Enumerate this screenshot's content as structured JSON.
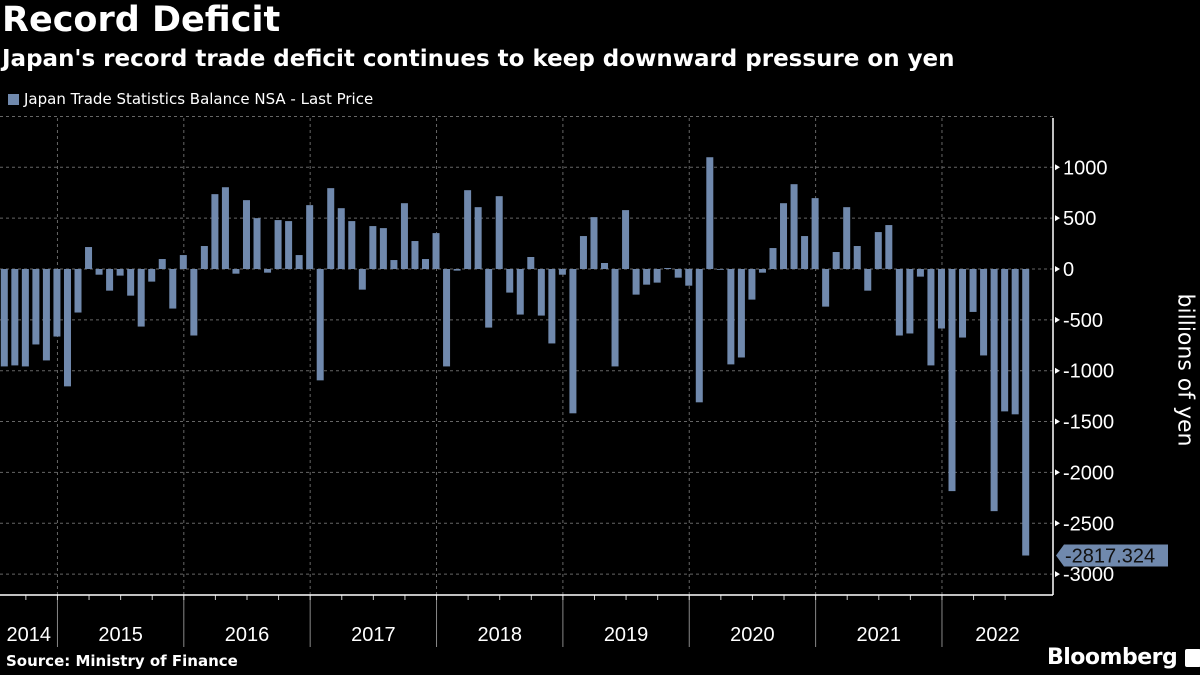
{
  "title": "Record Deficit",
  "subtitle": "Japan's record trade deficit continues to keep downward pressure on yen",
  "source": "Source: Ministry of Finance",
  "brand": "Bloomberg",
  "chart_data": {
    "type": "bar",
    "title": "Record Deficit",
    "subtitle": "Japan's record trade deficit continues to keep downward pressure on yen",
    "legend": [
      "Japan Trade Statistics Balance NSA - Last Price"
    ],
    "legend_placement": "top-left",
    "ylabel": "billions of yen",
    "ylim": [
      -3200,
      1500
    ],
    "yticks": [
      1000,
      500,
      0,
      -500,
      -1000,
      -1500,
      -2000,
      -2500,
      -3000
    ],
    "grid": true,
    "x_start": "2014-07",
    "x_end": "2022-08",
    "frequency": "monthly",
    "year_labels": [
      "2014",
      "2015",
      "2016",
      "2017",
      "2018",
      "2019",
      "2020",
      "2021",
      "2022"
    ],
    "color": "#7089ad",
    "last_value_label": "-2817.324",
    "values": [
      -958,
      -948,
      -958,
      -742,
      -899,
      -664,
      -1154,
      -428,
      216,
      -56,
      -213,
      -65,
      -262,
      -566,
      -124,
      98,
      -389,
      137,
      -654,
      226,
      736,
      804,
      -46,
      677,
      500,
      -36,
      481,
      471,
      137,
      628,
      -1095,
      795,
      598,
      471,
      -203,
      422,
      402,
      88,
      647,
      275,
      98,
      353,
      -958,
      -16,
      775,
      608,
      -576,
      716,
      -232,
      -448,
      118,
      -458,
      -732,
      -56,
      -1419,
      324,
      510,
      59,
      -958,
      579,
      -252,
      -154,
      -134,
      10,
      -85,
      -164,
      -1311,
      1099,
      -7,
      -938,
      -870,
      -301,
      -36,
      206,
      647,
      834,
      324,
      697,
      -370,
      167,
      608,
      226,
      -213,
      363,
      432,
      -654,
      -634,
      -75,
      -948,
      -585,
      -2184,
      -674,
      -422,
      -850,
      -2381,
      -1400,
      -1429,
      -2817.324
    ]
  }
}
